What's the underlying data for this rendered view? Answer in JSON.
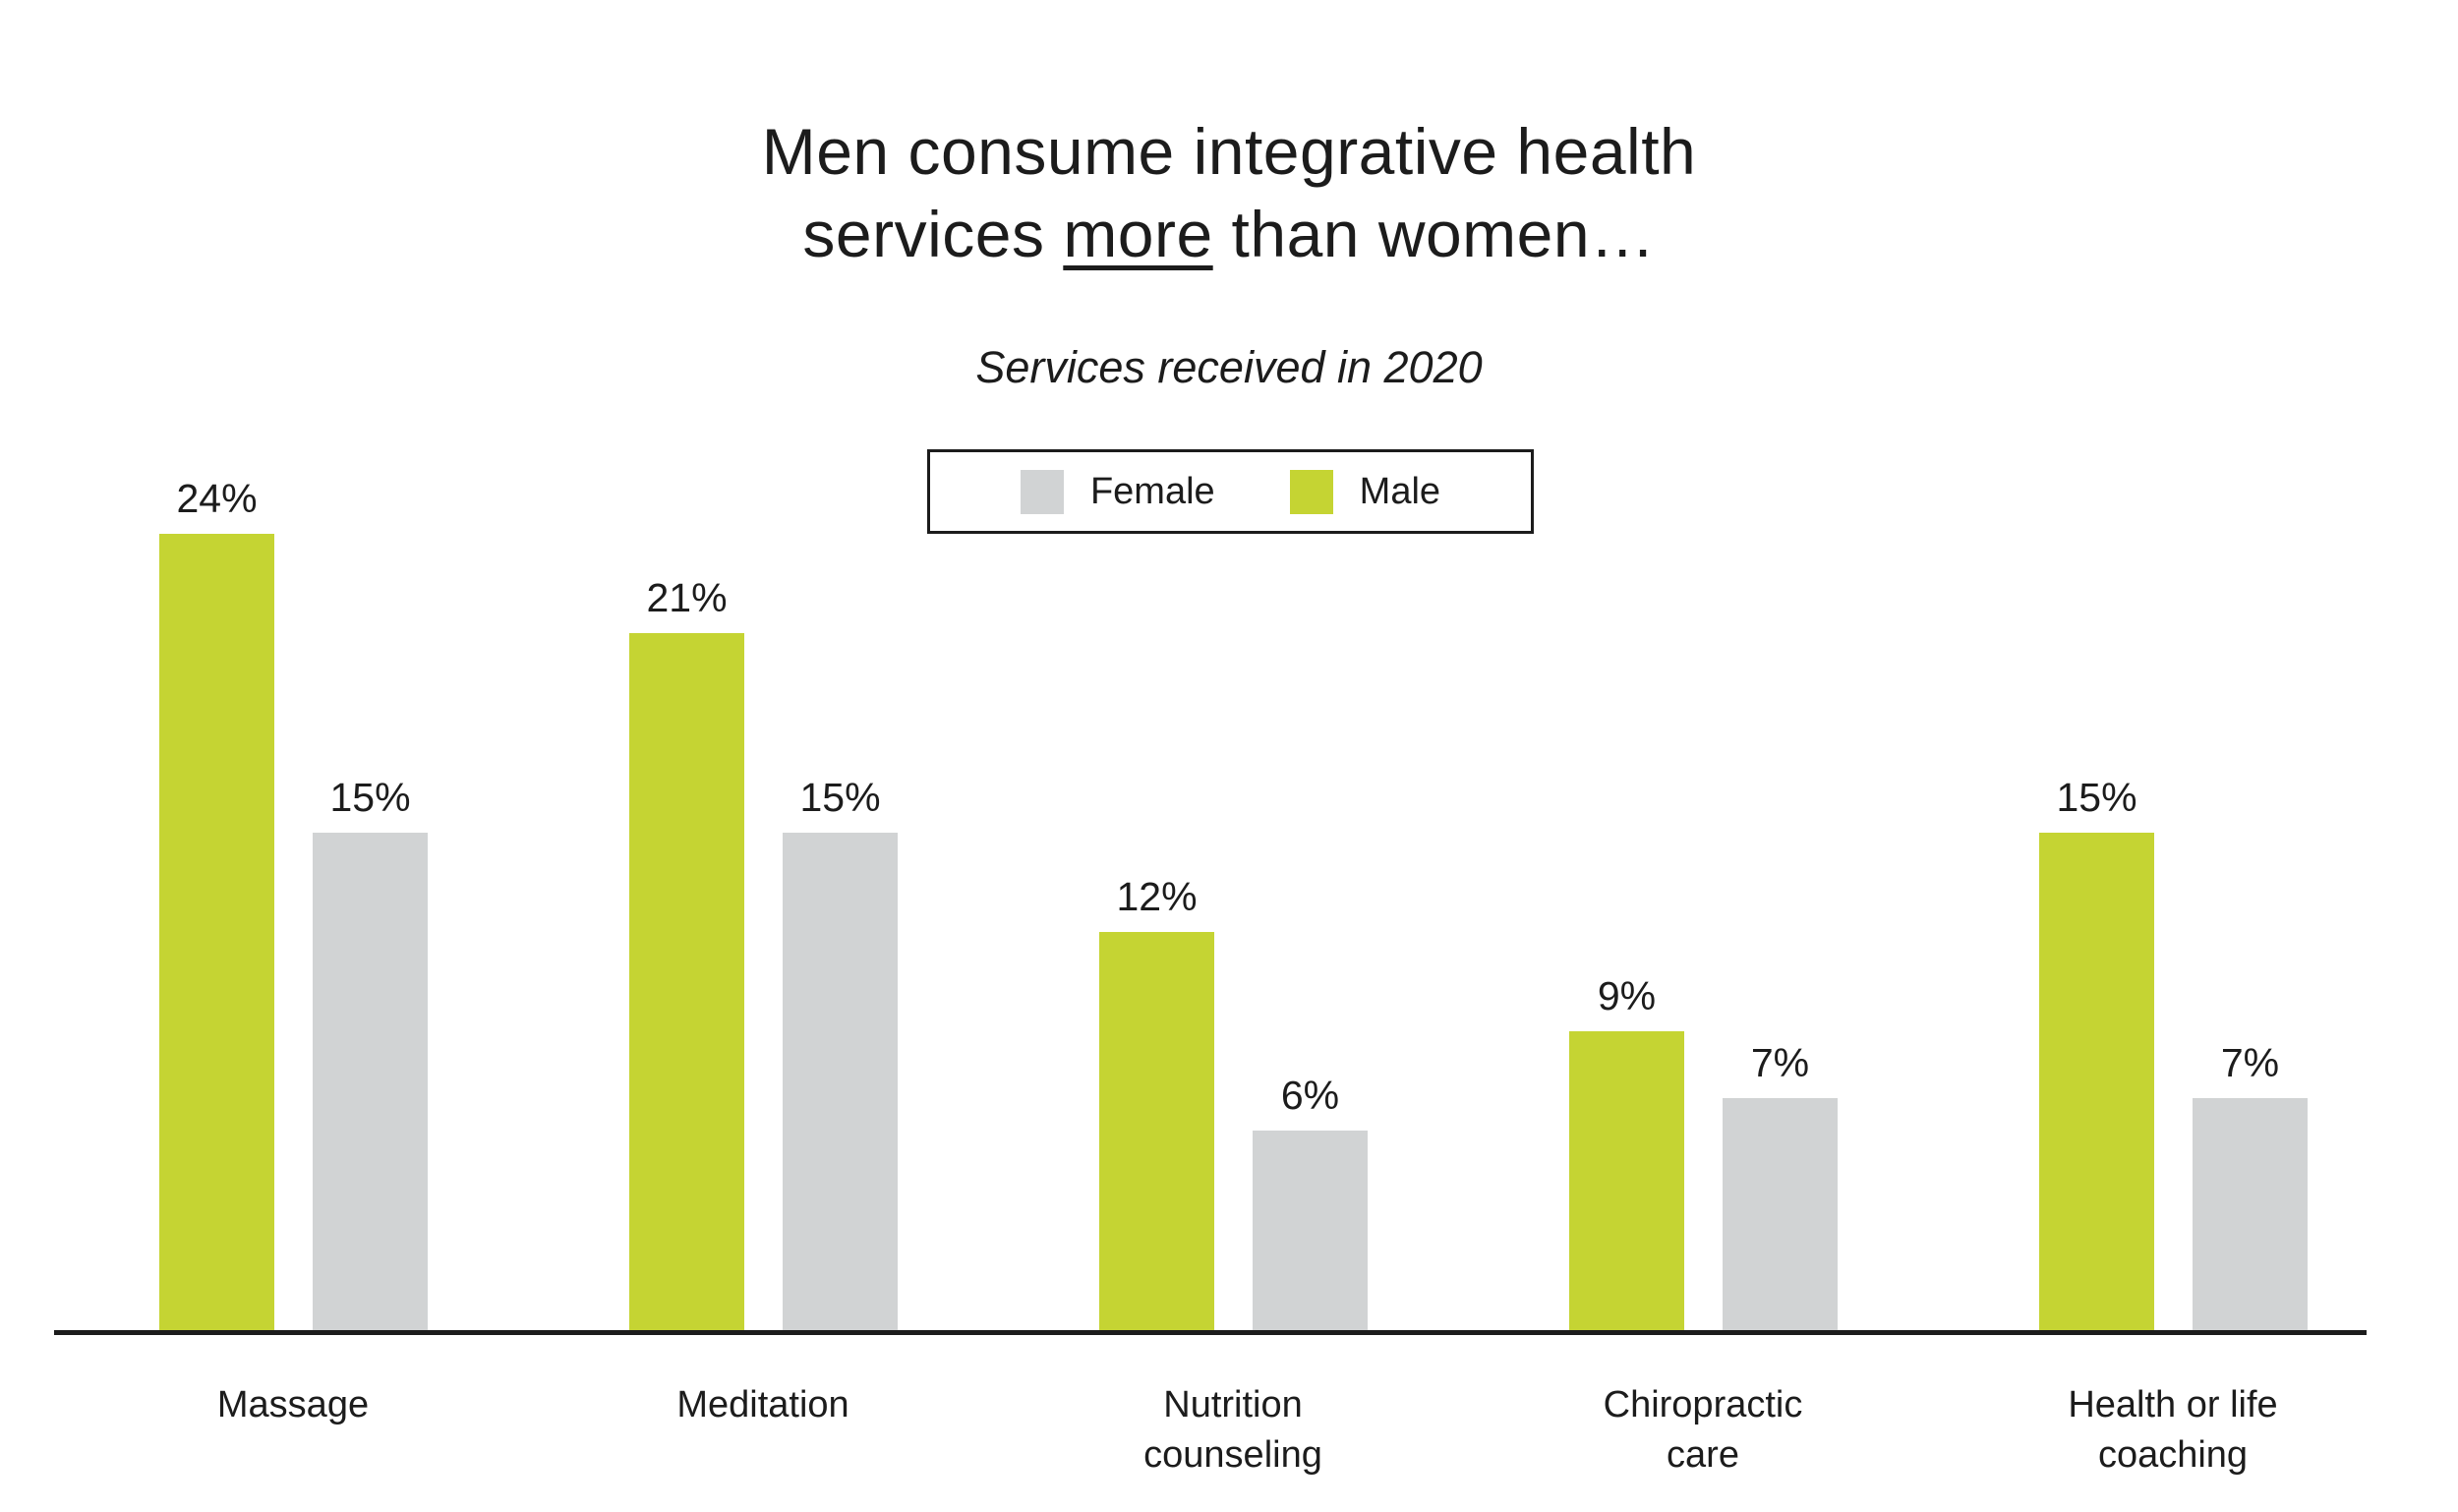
{
  "page": {
    "background": "#ffffff",
    "text_color": "#1c1c1c"
  },
  "title": {
    "line1": "Men consume integrative health",
    "line2_pre": "services ",
    "line2_underline": "more",
    "line2_post": " than women…"
  },
  "subtitle": "Services received in 2020",
  "legend": {
    "items": [
      {
        "label": "Female",
        "color": "#d1d3d4"
      },
      {
        "label": "Male",
        "color": "#c5d433"
      }
    ]
  },
  "chart_data": {
    "type": "bar",
    "title": "Men consume integrative health services more than women…",
    "subtitle": "Services received in 2020",
    "categories": [
      "Massage",
      "Meditation",
      "Nutrition counseling",
      "Chiropractic care",
      "Health or life coaching"
    ],
    "category_display": [
      "Massage",
      "Meditation",
      "Nutrition\ncounseling",
      "Chiropractic\ncare",
      "Health or life\ncoaching"
    ],
    "series": [
      {
        "name": "Male",
        "color": "#c5d433",
        "values": [
          24,
          21,
          12,
          9,
          15
        ]
      },
      {
        "name": "Female",
        "color": "#d1d3d4",
        "values": [
          15,
          15,
          6,
          7,
          7
        ]
      }
    ],
    "value_suffix": "%",
    "ylim": [
      0,
      25
    ],
    "grid": false,
    "y_axis_visible": false,
    "legend_position": "top-center",
    "legend_order": [
      "Female",
      "Male"
    ],
    "axis_color": "#1c1c1c"
  }
}
